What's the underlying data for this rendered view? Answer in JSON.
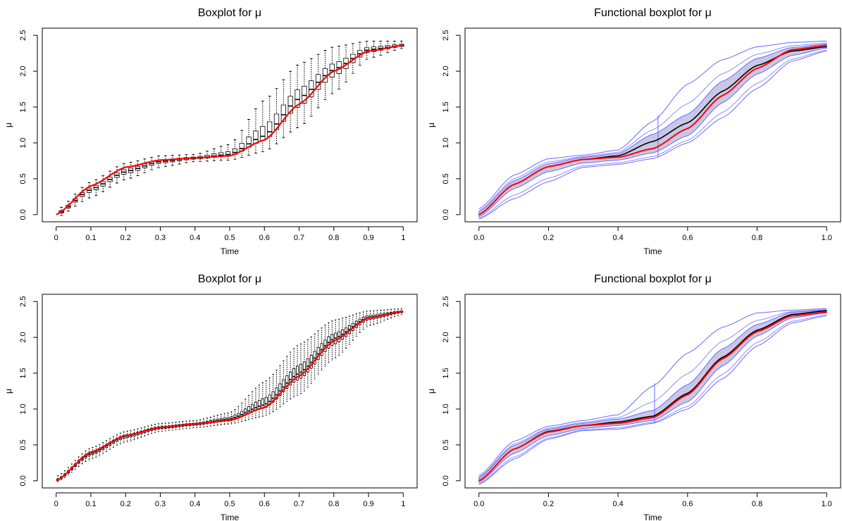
{
  "chart_data": [
    {
      "type": "boxplot",
      "title": "Boxplot for μ",
      "xlabel": "Time",
      "ylabel": "μ",
      "xlim": [
        0,
        1
      ],
      "ylim": [
        0,
        2.5
      ],
      "x_ticks": [
        "0",
        "0.1",
        "0.2",
        "0.3",
        "0.4",
        "0.5",
        "0.6",
        "0.7",
        "0.8",
        "0.9",
        "1"
      ],
      "y_ticks": [
        "0.0",
        "0.5",
        "1.0",
        "1.5",
        "2.0",
        "2.5"
      ],
      "grid": false,
      "box_positions": [
        0.015,
        0.035,
        0.055,
        0.075,
        0.095,
        0.115,
        0.135,
        0.155,
        0.175,
        0.195,
        0.215,
        0.235,
        0.255,
        0.275,
        0.295,
        0.315,
        0.335,
        0.355,
        0.375,
        0.395,
        0.415,
        0.435,
        0.455,
        0.475,
        0.495,
        0.515,
        0.535,
        0.555,
        0.575,
        0.595,
        0.615,
        0.635,
        0.655,
        0.675,
        0.695,
        0.715,
        0.735,
        0.755,
        0.775,
        0.795,
        0.815,
        0.835,
        0.855,
        0.875,
        0.895,
        0.915,
        0.935,
        0.955,
        0.975,
        0.995
      ],
      "median_curve": [
        [
          0.0,
          0.0
        ],
        [
          0.1,
          0.35
        ],
        [
          0.2,
          0.6
        ],
        [
          0.3,
          0.74
        ],
        [
          0.4,
          0.79
        ],
        [
          0.5,
          0.84
        ],
        [
          0.6,
          1.1
        ],
        [
          0.7,
          1.62
        ],
        [
          0.8,
          2.02
        ],
        [
          0.9,
          2.3
        ],
        [
          1.0,
          2.36
        ]
      ],
      "whisker_upper": [
        [
          0.0,
          0.06
        ],
        [
          0.1,
          0.46
        ],
        [
          0.2,
          0.72
        ],
        [
          0.3,
          0.82
        ],
        [
          0.4,
          0.84
        ],
        [
          0.5,
          0.98
        ],
        [
          0.6,
          1.6
        ],
        [
          0.7,
          2.1
        ],
        [
          0.8,
          2.34
        ],
        [
          0.9,
          2.42
        ],
        [
          1.0,
          2.42
        ]
      ],
      "whisker_lower": [
        [
          0.0,
          -0.04
        ],
        [
          0.1,
          0.24
        ],
        [
          0.2,
          0.49
        ],
        [
          0.3,
          0.66
        ],
        [
          0.4,
          0.74
        ],
        [
          0.5,
          0.76
        ],
        [
          0.6,
          0.88
        ],
        [
          0.7,
          1.22
        ],
        [
          0.8,
          1.7
        ],
        [
          0.9,
          2.18
        ],
        [
          1.0,
          2.32
        ]
      ],
      "true_curve": [
        [
          0.0,
          0.0
        ],
        [
          0.1,
          0.4
        ],
        [
          0.2,
          0.66
        ],
        [
          0.3,
          0.76
        ],
        [
          0.4,
          0.79
        ],
        [
          0.5,
          0.82
        ],
        [
          0.6,
          1.04
        ],
        [
          0.7,
          1.54
        ],
        [
          0.8,
          2.0
        ],
        [
          0.9,
          2.28
        ],
        [
          1.0,
          2.36
        ]
      ],
      "colors": {
        "true_curve": "#ff0000",
        "boxes": "#000000"
      }
    },
    {
      "type": "functional_boxplot",
      "title": "Functional boxplot for μ",
      "xlabel": "Time",
      "ylabel": "μ",
      "xlim": [
        0,
        1
      ],
      "ylim": [
        0,
        2.5
      ],
      "x_ticks": [
        "0.0",
        "0.2",
        "0.4",
        "0.6",
        "0.8",
        "1.0"
      ],
      "y_ticks": [
        "0.0",
        "0.5",
        "1.0",
        "1.5",
        "2.0",
        "2.5"
      ],
      "grid": false,
      "median": [
        [
          0.0,
          0.0
        ],
        [
          0.1,
          0.42
        ],
        [
          0.2,
          0.67
        ],
        [
          0.3,
          0.77
        ],
        [
          0.4,
          0.82
        ],
        [
          0.5,
          1.02
        ],
        [
          0.6,
          1.28
        ],
        [
          0.7,
          1.72
        ],
        [
          0.8,
          2.08
        ],
        [
          0.9,
          2.28
        ],
        [
          1.0,
          2.34
        ]
      ],
      "true_curve": [
        [
          0.0,
          0.0
        ],
        [
          0.1,
          0.42
        ],
        [
          0.2,
          0.67
        ],
        [
          0.3,
          0.77
        ],
        [
          0.4,
          0.8
        ],
        [
          0.5,
          0.92
        ],
        [
          0.6,
          1.2
        ],
        [
          0.7,
          1.66
        ],
        [
          0.8,
          2.04
        ],
        [
          0.9,
          2.3
        ],
        [
          1.0,
          2.36
        ]
      ],
      "band_upper": [
        [
          0.0,
          0.04
        ],
        [
          0.1,
          0.47
        ],
        [
          0.2,
          0.71
        ],
        [
          0.3,
          0.8
        ],
        [
          0.4,
          0.85
        ],
        [
          0.5,
          1.12
        ],
        [
          0.6,
          1.4
        ],
        [
          0.7,
          1.86
        ],
        [
          0.8,
          2.18
        ],
        [
          0.9,
          2.33
        ],
        [
          1.0,
          2.38
        ]
      ],
      "band_lower": [
        [
          0.0,
          -0.03
        ],
        [
          0.1,
          0.36
        ],
        [
          0.2,
          0.6
        ],
        [
          0.3,
          0.72
        ],
        [
          0.4,
          0.76
        ],
        [
          0.5,
          0.86
        ],
        [
          0.6,
          1.1
        ],
        [
          0.7,
          1.56
        ],
        [
          0.8,
          1.96
        ],
        [
          0.9,
          2.22
        ],
        [
          1.0,
          2.32
        ]
      ],
      "envelope_upper": [
        [
          0.0,
          0.08
        ],
        [
          0.1,
          0.55
        ],
        [
          0.2,
          0.78
        ],
        [
          0.3,
          0.83
        ],
        [
          0.4,
          0.9
        ],
        [
          0.5,
          1.3
        ],
        [
          0.6,
          1.82
        ],
        [
          0.7,
          2.16
        ],
        [
          0.8,
          2.34
        ],
        [
          0.9,
          2.4
        ],
        [
          1.0,
          2.42
        ]
      ],
      "envelope_lower": [
        [
          0.0,
          -0.06
        ],
        [
          0.1,
          0.22
        ],
        [
          0.2,
          0.46
        ],
        [
          0.3,
          0.66
        ],
        [
          0.4,
          0.7
        ],
        [
          0.5,
          0.78
        ],
        [
          0.6,
          1.0
        ],
        [
          0.7,
          1.35
        ],
        [
          0.8,
          1.76
        ],
        [
          0.9,
          2.14
        ],
        [
          1.0,
          2.28
        ]
      ],
      "whisker_x": 0.515,
      "colors": {
        "band": "#c8c8e6",
        "envelope": "#6a6aff",
        "median": "#000000",
        "true_curve": "#ff0000"
      }
    },
    {
      "type": "boxplot",
      "title": "Boxplot for μ",
      "xlabel": "Time",
      "ylabel": "μ",
      "xlim": [
        0,
        1
      ],
      "ylim": [
        0,
        2.5
      ],
      "x_ticks": [
        "0",
        "0.1",
        "0.2",
        "0.3",
        "0.4",
        "0.5",
        "0.6",
        "0.7",
        "0.8",
        "0.9",
        "1"
      ],
      "y_ticks": [
        "0.0",
        "0.5",
        "1.0",
        "1.5",
        "2.0",
        "2.5"
      ],
      "grid": false,
      "box_positions": [
        0.005,
        0.015,
        0.025,
        0.035,
        0.045,
        0.055,
        0.065,
        0.075,
        0.085,
        0.095,
        0.105,
        0.115,
        0.125,
        0.135,
        0.145,
        0.155,
        0.165,
        0.175,
        0.185,
        0.195,
        0.205,
        0.215,
        0.225,
        0.235,
        0.245,
        0.255,
        0.265,
        0.275,
        0.285,
        0.295,
        0.305,
        0.315,
        0.325,
        0.335,
        0.345,
        0.355,
        0.365,
        0.375,
        0.385,
        0.395,
        0.405,
        0.415,
        0.425,
        0.435,
        0.445,
        0.455,
        0.465,
        0.475,
        0.485,
        0.495,
        0.505,
        0.515,
        0.525,
        0.535,
        0.545,
        0.555,
        0.565,
        0.575,
        0.585,
        0.595,
        0.605,
        0.615,
        0.625,
        0.635,
        0.645,
        0.655,
        0.665,
        0.675,
        0.685,
        0.695,
        0.705,
        0.715,
        0.725,
        0.735,
        0.745,
        0.755,
        0.765,
        0.775,
        0.785,
        0.795,
        0.805,
        0.815,
        0.825,
        0.835,
        0.845,
        0.855,
        0.865,
        0.875,
        0.885,
        0.895,
        0.905,
        0.915,
        0.925,
        0.935,
        0.945,
        0.955,
        0.965,
        0.975,
        0.985,
        0.995
      ],
      "median_curve": [
        [
          0.0,
          0.0
        ],
        [
          0.1,
          0.38
        ],
        [
          0.2,
          0.62
        ],
        [
          0.3,
          0.74
        ],
        [
          0.4,
          0.79
        ],
        [
          0.5,
          0.86
        ],
        [
          0.6,
          1.06
        ],
        [
          0.7,
          1.5
        ],
        [
          0.8,
          1.98
        ],
        [
          0.9,
          2.28
        ],
        [
          1.0,
          2.36
        ]
      ],
      "whisker_upper": [
        [
          0.0,
          0.06
        ],
        [
          0.1,
          0.46
        ],
        [
          0.2,
          0.69
        ],
        [
          0.3,
          0.8
        ],
        [
          0.4,
          0.84
        ],
        [
          0.5,
          0.95
        ],
        [
          0.6,
          1.38
        ],
        [
          0.7,
          1.9
        ],
        [
          0.8,
          2.24
        ],
        [
          0.9,
          2.37
        ],
        [
          1.0,
          2.4
        ]
      ],
      "whisker_lower": [
        [
          0.0,
          -0.02
        ],
        [
          0.1,
          0.3
        ],
        [
          0.2,
          0.54
        ],
        [
          0.3,
          0.69
        ],
        [
          0.4,
          0.74
        ],
        [
          0.5,
          0.79
        ],
        [
          0.6,
          0.9
        ],
        [
          0.7,
          1.2
        ],
        [
          0.8,
          1.7
        ],
        [
          0.9,
          2.16
        ],
        [
          1.0,
          2.32
        ]
      ],
      "true_curve": [
        [
          0.0,
          0.0
        ],
        [
          0.1,
          0.4
        ],
        [
          0.2,
          0.63
        ],
        [
          0.3,
          0.74
        ],
        [
          0.4,
          0.79
        ],
        [
          0.5,
          0.84
        ],
        [
          0.6,
          1.02
        ],
        [
          0.7,
          1.46
        ],
        [
          0.8,
          1.95
        ],
        [
          0.9,
          2.27
        ],
        [
          1.0,
          2.36
        ]
      ],
      "colors": {
        "true_curve": "#ff0000",
        "boxes": "#000000"
      }
    },
    {
      "type": "functional_boxplot",
      "title": "Functional boxplot for μ",
      "xlabel": "Time",
      "ylabel": "μ",
      "xlim": [
        0,
        1
      ],
      "ylim": [
        0,
        2.5
      ],
      "x_ticks": [
        "0.0",
        "0.2",
        "0.4",
        "0.6",
        "0.8",
        "1.0"
      ],
      "y_ticks": [
        "0.0",
        "0.5",
        "1.0",
        "1.5",
        "2.0",
        "2.5"
      ],
      "grid": false,
      "median": [
        [
          0.0,
          0.0
        ],
        [
          0.1,
          0.44
        ],
        [
          0.2,
          0.69
        ],
        [
          0.3,
          0.77
        ],
        [
          0.4,
          0.82
        ],
        [
          0.5,
          0.9
        ],
        [
          0.6,
          1.22
        ],
        [
          0.7,
          1.72
        ],
        [
          0.8,
          2.1
        ],
        [
          0.9,
          2.32
        ],
        [
          1.0,
          2.37
        ]
      ],
      "true_curve": [
        [
          0.0,
          0.0
        ],
        [
          0.1,
          0.44
        ],
        [
          0.2,
          0.68
        ],
        [
          0.3,
          0.77
        ],
        [
          0.4,
          0.8
        ],
        [
          0.5,
          0.88
        ],
        [
          0.6,
          1.2
        ],
        [
          0.7,
          1.7
        ],
        [
          0.8,
          2.08
        ],
        [
          0.9,
          2.3
        ],
        [
          1.0,
          2.35
        ]
      ],
      "band_upper": [
        [
          0.0,
          0.04
        ],
        [
          0.1,
          0.49
        ],
        [
          0.2,
          0.72
        ],
        [
          0.3,
          0.8
        ],
        [
          0.4,
          0.86
        ],
        [
          0.5,
          0.98
        ],
        [
          0.6,
          1.34
        ],
        [
          0.7,
          1.84
        ],
        [
          0.8,
          2.18
        ],
        [
          0.9,
          2.35
        ],
        [
          1.0,
          2.38
        ]
      ],
      "band_lower": [
        [
          0.0,
          -0.02
        ],
        [
          0.1,
          0.38
        ],
        [
          0.2,
          0.63
        ],
        [
          0.3,
          0.73
        ],
        [
          0.4,
          0.77
        ],
        [
          0.5,
          0.84
        ],
        [
          0.6,
          1.1
        ],
        [
          0.7,
          1.6
        ],
        [
          0.8,
          2.02
        ],
        [
          0.9,
          2.27
        ],
        [
          1.0,
          2.34
        ]
      ],
      "envelope_upper": [
        [
          0.0,
          0.07
        ],
        [
          0.1,
          0.55
        ],
        [
          0.2,
          0.76
        ],
        [
          0.3,
          0.84
        ],
        [
          0.4,
          0.92
        ],
        [
          0.5,
          1.32
        ],
        [
          0.6,
          1.78
        ],
        [
          0.7,
          2.14
        ],
        [
          0.8,
          2.34
        ],
        [
          0.9,
          2.38
        ],
        [
          1.0,
          2.4
        ]
      ],
      "envelope_lower": [
        [
          0.0,
          -0.05
        ],
        [
          0.1,
          0.3
        ],
        [
          0.2,
          0.58
        ],
        [
          0.3,
          0.7
        ],
        [
          0.4,
          0.72
        ],
        [
          0.5,
          0.8
        ],
        [
          0.6,
          1.0
        ],
        [
          0.7,
          1.42
        ],
        [
          0.8,
          1.88
        ],
        [
          0.9,
          2.2
        ],
        [
          1.0,
          2.3
        ]
      ],
      "whisker_x": 0.505,
      "colors": {
        "band": "#c8c8e6",
        "envelope": "#6a6aff",
        "median": "#000000",
        "true_curve": "#ff0000"
      }
    }
  ]
}
